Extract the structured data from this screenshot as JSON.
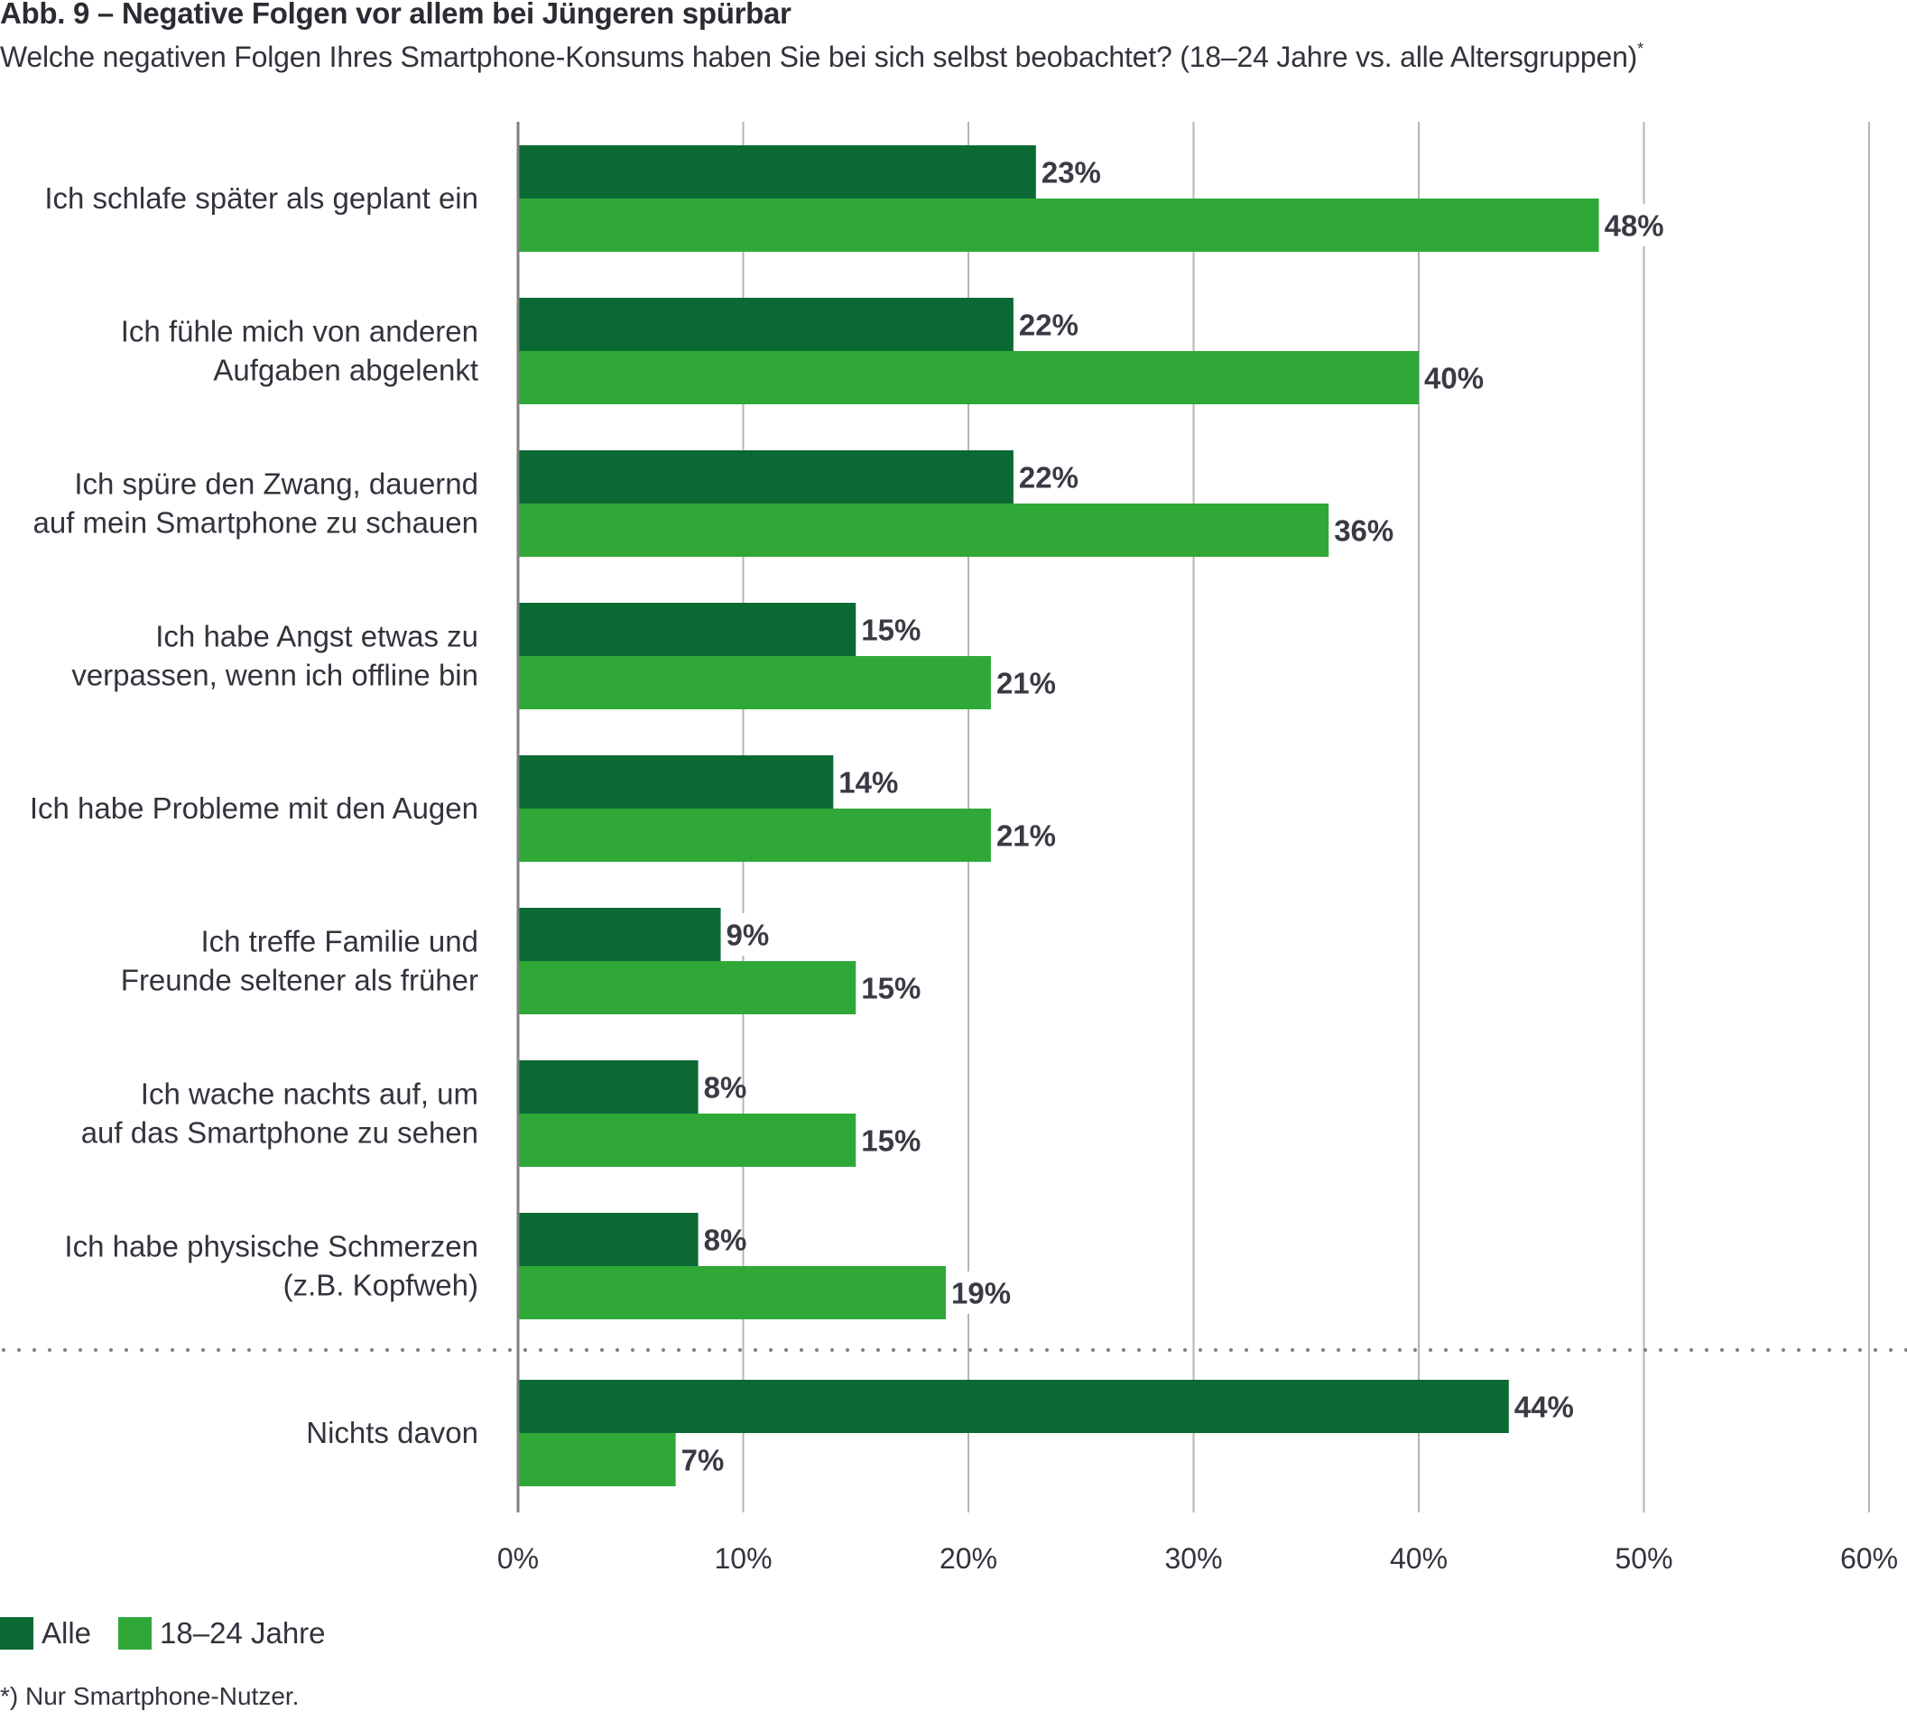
{
  "header": {
    "title": "Abb. 9 – Negative Folgen vor allem bei Jüngeren spürbar",
    "subtitle": "Welche negativen Folgen Ihres Smartphone-Konsums haben Sie bei sich selbst beobachtet? (18–24 Jahre vs. alle Altersgruppen)",
    "subtitle_marker": "*"
  },
  "colors": {
    "alle": "#0b6934",
    "jung": "#2fa838",
    "gridline": "#b5b5b5",
    "axis": "#808080",
    "separator": "#808080",
    "text": "#33333d",
    "value_label": "#3a3a44"
  },
  "chart_data": {
    "type": "bar",
    "orientation": "horizontal",
    "title": "Abb. 9 – Negative Folgen vor allem bei Jüngeren spürbar",
    "subtitle": "Welche negativen Folgen Ihres Smartphone-Konsums haben Sie bei sich selbst beobachtet? (18–24 Jahre vs. alle Altersgruppen)*",
    "xlabel": "",
    "ylabel": "",
    "xlim": [
      0,
      60
    ],
    "xticks": [
      0,
      10,
      20,
      30,
      40,
      50,
      60
    ],
    "xtick_labels": [
      "0%",
      "10%",
      "20%",
      "30%",
      "40%",
      "50%",
      "60%"
    ],
    "grid": true,
    "legend_position": "bottom-left",
    "categories": [
      [
        "Ich schlafe später als geplant ein"
      ],
      [
        "Ich fühle mich von anderen",
        "Aufgaben abgelenkt"
      ],
      [
        "Ich spüre den Zwang, dauernd",
        "auf mein Smartphone zu schauen"
      ],
      [
        "Ich habe Angst etwas zu",
        "verpassen, wenn ich offline bin"
      ],
      [
        "Ich habe Probleme mit den Augen"
      ],
      [
        "Ich treffe Familie und",
        "Freunde seltener als früher"
      ],
      [
        "Ich wache nachts auf, um",
        "auf das Smartphone zu sehen"
      ],
      [
        "Ich habe physische Schmerzen",
        "(z.B. Kopfweh)"
      ],
      [
        "Nichts davon"
      ]
    ],
    "separator_before_index": 8,
    "series": [
      {
        "name": "Alle",
        "color_key": "alle",
        "values": [
          23,
          22,
          22,
          15,
          14,
          9,
          8,
          8,
          44
        ]
      },
      {
        "name": "18–24 Jahre",
        "color_key": "jung",
        "values": [
          48,
          40,
          36,
          21,
          21,
          15,
          15,
          19,
          7
        ]
      }
    ],
    "value_suffix": "%"
  },
  "legend": [
    {
      "label": "Alle",
      "color_key": "alle"
    },
    {
      "label": "18–24 Jahre",
      "color_key": "jung"
    }
  ],
  "footnote": "*) Nur Smartphone-Nutzer."
}
